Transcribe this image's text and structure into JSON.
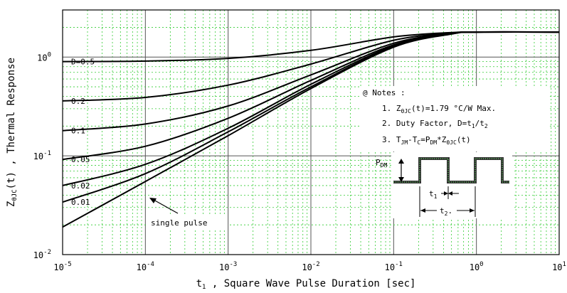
{
  "chart_data": {
    "type": "line",
    "title": "",
    "xlabel": "t1 , Square Wave Pulse Duration [sec]",
    "ylabel": "ZθJC(t) , Thermal Response",
    "xscale": "log",
    "yscale": "log",
    "xlim": [
      1e-05,
      10
    ],
    "ylim": [
      0.01,
      3
    ],
    "grid": true,
    "x_tick_labels": [
      "10-5",
      "10-4",
      "10-3",
      "10-2",
      "10-1",
      "100",
      "101"
    ],
    "y_tick_labels": [
      "10-2",
      "10-1",
      "100"
    ],
    "series": [
      {
        "name": "D=0.5",
        "x": [
          1e-05,
          0.0001,
          0.001,
          0.01,
          0.1,
          0.5,
          1,
          10
        ],
        "y": [
          0.9,
          0.91,
          0.97,
          1.17,
          1.6,
          1.77,
          1.79,
          1.79
        ]
      },
      {
        "name": "0.2",
        "x": [
          1e-05,
          0.0001,
          0.001,
          0.01,
          0.1,
          0.5,
          1,
          10
        ],
        "y": [
          0.36,
          0.39,
          0.52,
          0.85,
          1.48,
          1.75,
          1.79,
          1.79
        ]
      },
      {
        "name": "0.1",
        "x": [
          1e-05,
          0.0001,
          0.001,
          0.01,
          0.1,
          0.5,
          1,
          10
        ],
        "y": [
          0.18,
          0.21,
          0.32,
          0.66,
          1.38,
          1.74,
          1.79,
          1.79
        ]
      },
      {
        "name": "0.05",
        "x": [
          1e-05,
          0.0001,
          0.001,
          0.01,
          0.1,
          0.5,
          1,
          10
        ],
        "y": [
          0.092,
          0.125,
          0.24,
          0.58,
          1.33,
          1.73,
          1.79,
          1.79
        ]
      },
      {
        "name": "0.02",
        "x": [
          1e-05,
          0.0001,
          0.001,
          0.01,
          0.1,
          0.5,
          1,
          10
        ],
        "y": [
          0.05,
          0.082,
          0.19,
          0.53,
          1.3,
          1.72,
          1.79,
          1.79
        ]
      },
      {
        "name": "0.01",
        "x": [
          1e-05,
          0.0001,
          0.001,
          0.01,
          0.1,
          0.5,
          1,
          10
        ],
        "y": [
          0.034,
          0.066,
          0.175,
          0.5,
          1.28,
          1.72,
          1.79,
          1.79
        ]
      },
      {
        "name": "single pulse",
        "x": [
          1e-05,
          0.0001,
          0.001,
          0.01,
          0.1,
          0.5,
          1,
          10
        ],
        "y": [
          0.019,
          0.055,
          0.16,
          0.48,
          1.26,
          1.71,
          1.79,
          1.79
        ]
      }
    ],
    "annotations": {
      "single_pulse_label": "single pulse",
      "notes_title": "@ Notes :",
      "note1": "1. ZθJC(t)=1.79 °C/W Max.",
      "note2": "2. Duty Factor, D=t1/t2",
      "note3": "3. TJM-TC=PDM*ZθJC(t)",
      "pdm_label": "PDM",
      "t1_label": "t1",
      "t2_label": "t2"
    }
  }
}
